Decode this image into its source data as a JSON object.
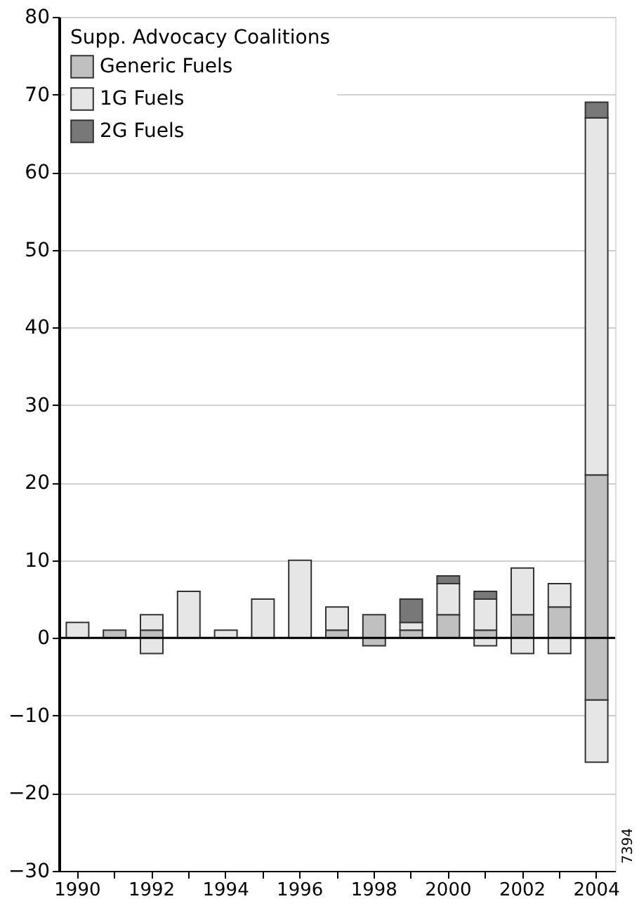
{
  "chart_data": {
    "type": "bar",
    "stacked": true,
    "categories": [
      "1990",
      null,
      "1992",
      null,
      "1994",
      null,
      "1996",
      null,
      "1998",
      null,
      "2000",
      null,
      "2002",
      null,
      "2004"
    ],
    "series": [
      {
        "name": "Generic Fuels",
        "color": "#c0c0c0",
        "values": [
          null,
          1,
          1,
          null,
          null,
          null,
          null,
          1,
          3,
          1,
          3,
          1,
          3,
          4,
          21
        ]
      },
      {
        "name": "1G Fuels",
        "color": "#e6e6e6",
        "values": [
          2,
          null,
          2,
          6,
          1,
          5,
          10,
          3,
          null,
          1,
          4,
          4,
          6,
          3,
          46
        ]
      },
      {
        "name": "2G Fuels",
        "color": "#787878",
        "values": [
          null,
          null,
          null,
          null,
          null,
          null,
          null,
          null,
          null,
          3,
          1,
          1,
          null,
          null,
          2
        ]
      },
      {
        "color": "#c0c0c0",
        "values": [
          null,
          null,
          null,
          null,
          null,
          null,
          null,
          null,
          -1,
          null,
          null,
          null,
          null,
          null,
          -8
        ]
      },
      {
        "color": "#e6e6e6",
        "values": [
          null,
          null,
          -2,
          null,
          null,
          null,
          null,
          null,
          null,
          null,
          null,
          -1,
          -2,
          -2,
          -8
        ]
      }
    ],
    "legend_title": "Supp. Advocacy Coalitions",
    "legend": "top left",
    "ylim": [
      -30,
      80
    ],
    "yticks": [
      -30,
      -20,
      -10,
      0,
      10,
      20,
      30,
      40,
      50,
      60,
      70,
      80
    ],
    "grid": "y",
    "ref_lines": [
      {
        "axis": "y",
        "value": 0,
        "color": "#000000"
      }
    ],
    "annotations": [
      "7394"
    ]
  }
}
